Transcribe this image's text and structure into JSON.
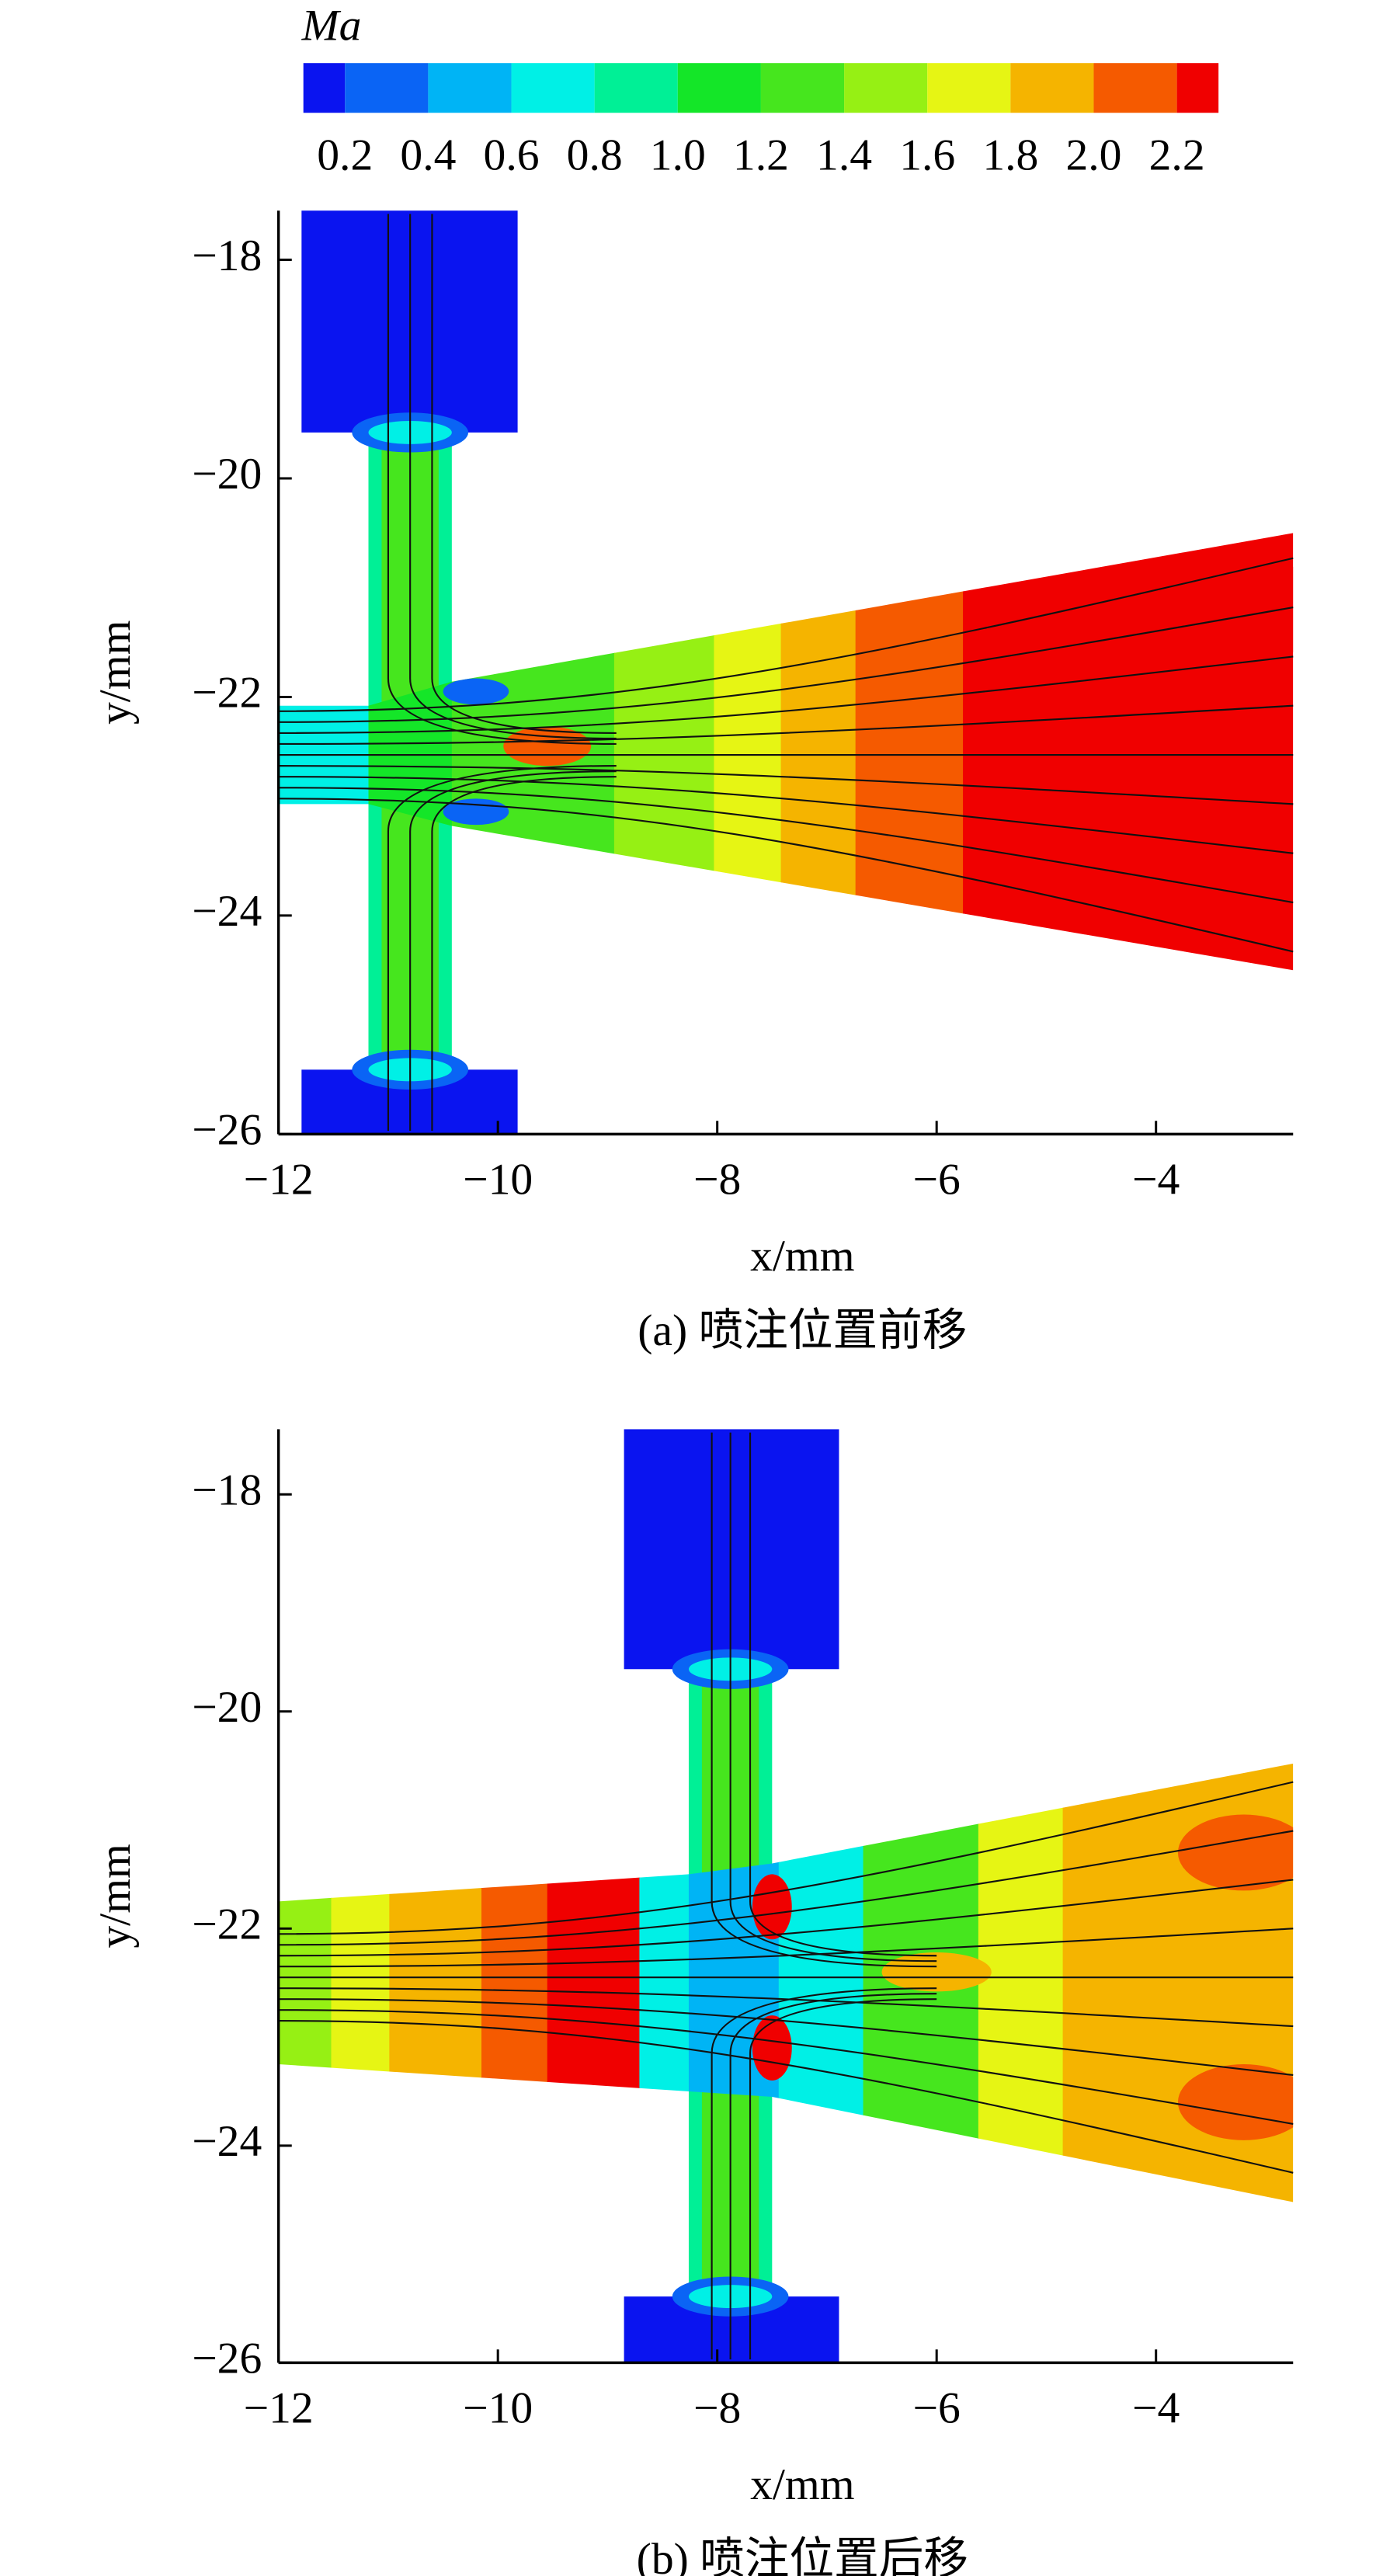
{
  "colorbar": {
    "title": "Ma",
    "colors": [
      "#0a14f0",
      "#0a64f5",
      "#00b4f5",
      "#00f0e6",
      "#00f096",
      "#14e628",
      "#46e61e",
      "#96f014",
      "#e6f514",
      "#f5b400",
      "#f55a00",
      "#f00000"
    ],
    "clim": [
      0.1,
      2.3
    ],
    "ticks": [
      0.2,
      0.4,
      0.6,
      0.8,
      {
        "value": 1,
        "label": "1.0"
      },
      1.2,
      1.4,
      1.6,
      1.8,
      {
        "value": 2,
        "label": "2.0"
      },
      2.2
    ]
  },
  "chart_data": [
    {
      "type": "contour",
      "caption": "(a) 喷注位置前移",
      "xlabel": "x/mm",
      "ylabel": "y/mm",
      "xlim": [
        -12,
        -2.75
      ],
      "ylim": [
        -26,
        -17.55
      ],
      "xticks": [
        {
          "value": -12,
          "label": "−12"
        },
        {
          "value": -10,
          "label": "−10"
        },
        {
          "value": -8,
          "label": "−8"
        },
        {
          "value": -6,
          "label": "−6"
        },
        {
          "value": -4,
          "label": "−4"
        }
      ],
      "yticks": [
        {
          "value": -18,
          "label": "−18"
        },
        {
          "value": -20,
          "label": "−20"
        },
        {
          "value": -22,
          "label": "−22"
        },
        {
          "value": -24,
          "label": "−24"
        },
        {
          "value": -26,
          "label": "−26"
        }
      ]
    },
    {
      "type": "contour",
      "caption": "(b) 喷注位置后移",
      "xlabel": "x/mm",
      "ylabel": "y/mm",
      "xlim": [
        -12,
        -2.75
      ],
      "ylim": [
        -26,
        -17.4
      ],
      "xticks": [
        {
          "value": -12,
          "label": "−12"
        },
        {
          "value": -10,
          "label": "−10"
        },
        {
          "value": -8,
          "label": "−8"
        },
        {
          "value": -6,
          "label": "−6"
        },
        {
          "value": -4,
          "label": "−4"
        }
      ],
      "yticks": [
        {
          "value": -18,
          "label": "−18"
        },
        {
          "value": -20,
          "label": "−20"
        },
        {
          "value": -22,
          "label": "−22"
        },
        {
          "value": -24,
          "label": "−24"
        },
        {
          "value": -26,
          "label": "−26"
        }
      ]
    }
  ]
}
